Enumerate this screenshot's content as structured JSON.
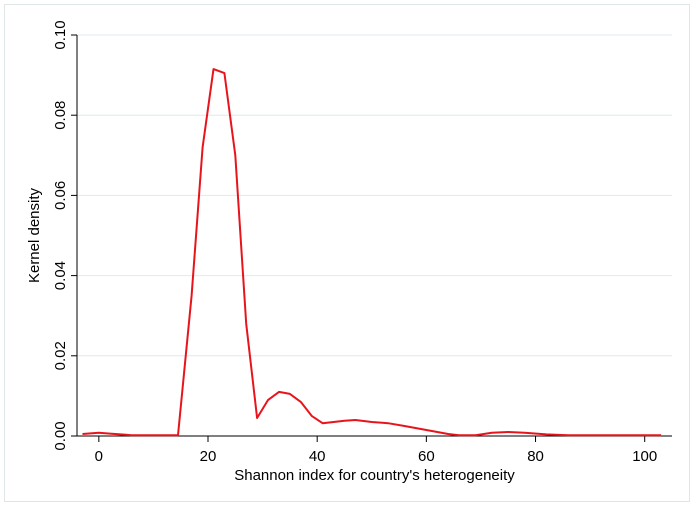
{
  "chart_data": {
    "type": "line",
    "title": "",
    "xlabel": "Shannon index for country's heterogeneity",
    "ylabel": "Kernel density",
    "xlim": [
      -4,
      105
    ],
    "ylim": [
      0,
      0.1
    ],
    "x_ticks": [
      0,
      20,
      40,
      60,
      80,
      100
    ],
    "x_tick_labels": [
      "0",
      "20",
      "40",
      "60",
      "80",
      "100"
    ],
    "y_ticks": [
      0,
      0.02,
      0.04,
      0.06,
      0.08,
      0.1
    ],
    "y_tick_labels": [
      "0.00",
      "0.02",
      "0.04",
      "0.06",
      "0.08",
      "0.10"
    ],
    "grid": "horizontal",
    "line_color": "#e8141c",
    "series": [
      {
        "x": [
          -3,
          0,
          2,
          6,
          10,
          14.5,
          17,
          19,
          21,
          23,
          25,
          27,
          29,
          31,
          33,
          35,
          37,
          39,
          41,
          43,
          45,
          47,
          50,
          53,
          56,
          60,
          64,
          66,
          69,
          72,
          75,
          78,
          82,
          86,
          90,
          94,
          98,
          103
        ],
        "y": [
          0.0005,
          0.0008,
          0.0006,
          0.0002,
          0.0002,
          0.0002,
          0.035,
          0.072,
          0.0915,
          0.0905,
          0.07,
          0.028,
          0.0045,
          0.009,
          0.011,
          0.0105,
          0.0085,
          0.005,
          0.0032,
          0.0035,
          0.0038,
          0.004,
          0.0035,
          0.0032,
          0.0025,
          0.0015,
          0.0005,
          0.0002,
          0.0002,
          0.0008,
          0.001,
          0.0008,
          0.0004,
          0.0002,
          0.0002,
          0.0002,
          0.0002,
          0.0002
        ]
      }
    ]
  }
}
